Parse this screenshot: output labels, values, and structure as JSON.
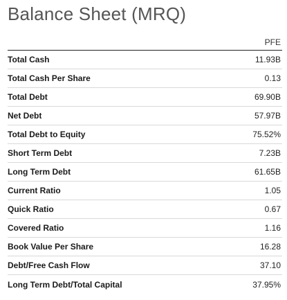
{
  "title": "Balance Sheet (MRQ)",
  "table": {
    "column_header": "PFE",
    "rows": [
      {
        "label": "Total Cash",
        "value": "11.93B"
      },
      {
        "label": "Total Cash Per Share",
        "value": "0.13"
      },
      {
        "label": "Total Debt",
        "value": "69.90B"
      },
      {
        "label": "Net Debt",
        "value": "57.97B"
      },
      {
        "label": "Total Debt to Equity",
        "value": "75.52%"
      },
      {
        "label": "Short Term Debt",
        "value": "7.23B"
      },
      {
        "label": "Long Term Debt",
        "value": "61.65B"
      },
      {
        "label": "Current Ratio",
        "value": "1.05"
      },
      {
        "label": "Quick Ratio",
        "value": "0.67"
      },
      {
        "label": "Covered Ratio",
        "value": "1.16"
      },
      {
        "label": "Book Value Per Share",
        "value": "16.28"
      },
      {
        "label": "Debt/Free Cash Flow",
        "value": "37.10"
      },
      {
        "label": "Long Term Debt/Total Capital",
        "value": "37.95%"
      }
    ]
  }
}
